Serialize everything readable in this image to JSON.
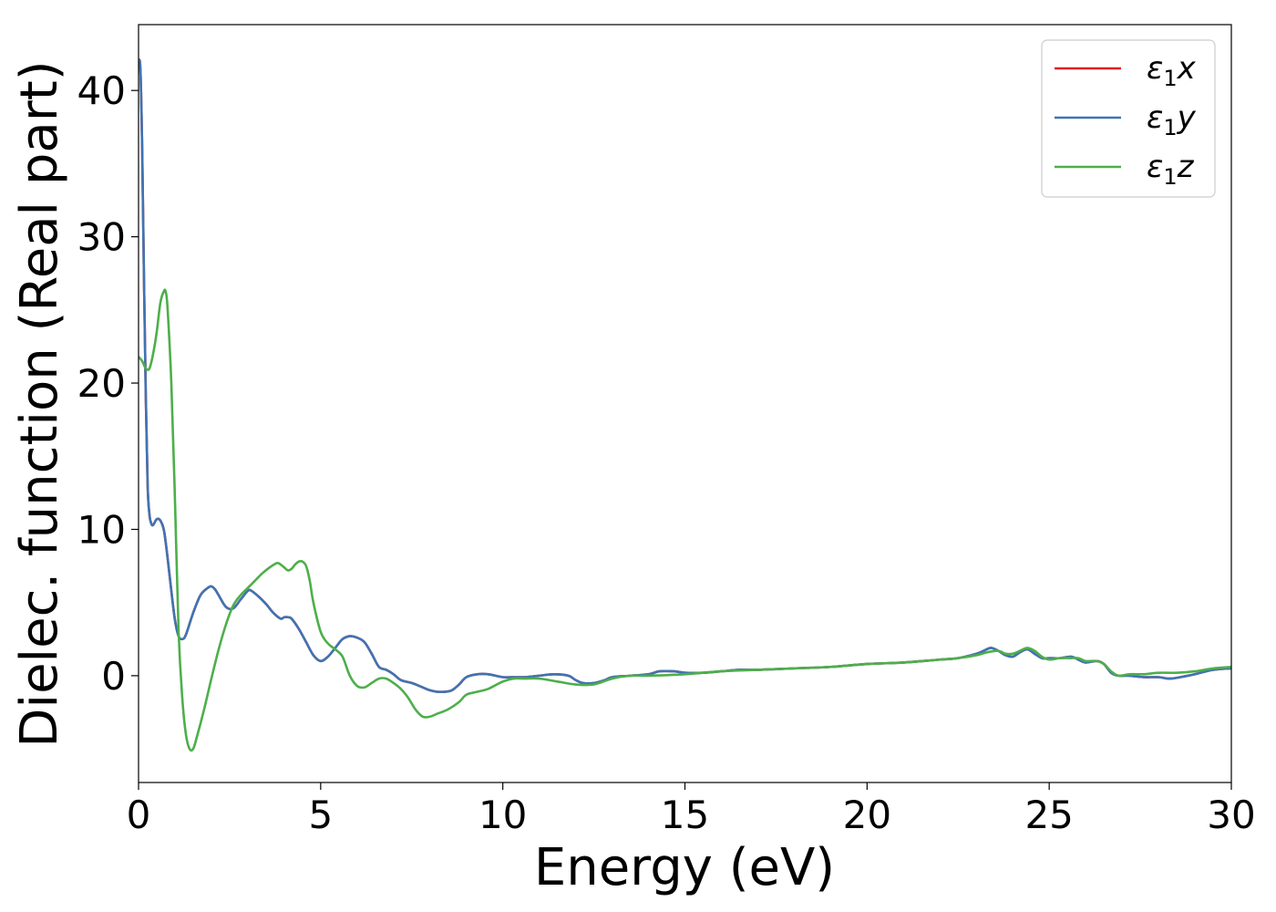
{
  "chart_data": {
    "type": "line",
    "title": "",
    "xlabel": "Energy (eV)",
    "ylabel": "Dielec. function (Real part)",
    "xlim": [
      0,
      30
    ],
    "ylim": [
      -7.3,
      44.5
    ],
    "xticks": [
      "0",
      "5",
      "10",
      "15",
      "20",
      "25",
      "30"
    ],
    "yticks": [
      "0",
      "10",
      "20",
      "30",
      "40"
    ],
    "legend_position": "top-right",
    "grid": false,
    "series": [
      {
        "name": "ε1x",
        "legend": {
          "base": "ε",
          "sub": "1",
          "var": "x"
        },
        "color": "#e41a1c",
        "x": [
          0,
          0.05,
          0.1,
          0.15,
          0.2,
          0.25,
          0.3,
          0.35,
          0.4,
          0.5,
          0.6,
          0.7,
          0.8,
          0.9,
          1.0,
          1.1,
          1.2,
          1.3,
          1.5,
          1.7,
          1.9,
          2.0,
          2.1,
          2.2,
          2.4,
          2.6,
          2.8,
          3.0,
          3.1,
          3.3,
          3.5,
          3.7,
          3.9,
          4.0,
          4.1,
          4.2,
          4.4,
          4.6,
          4.8,
          5.0,
          5.2,
          5.4,
          5.6,
          5.8,
          6.0,
          6.2,
          6.4,
          6.6,
          6.8,
          7.0,
          7.2,
          7.5,
          7.8,
          8.0,
          8.2,
          8.4,
          8.6,
          8.8,
          9.0,
          9.3,
          9.6,
          10.0,
          10.3,
          10.6,
          11.0,
          11.4,
          11.8,
          12.0,
          12.2,
          12.5,
          12.8,
          13.0,
          13.5,
          14.0,
          14.3,
          14.7,
          15.0,
          15.5,
          16.0,
          16.5,
          17.0,
          18.0,
          19.0,
          20.0,
          21.0,
          22.0,
          22.5,
          23.0,
          23.2,
          23.4,
          23.6,
          23.8,
          24.0,
          24.2,
          24.4,
          24.6,
          24.8,
          25.0,
          25.3,
          25.6,
          25.8,
          26.0,
          26.3,
          26.5,
          26.7,
          26.9,
          27.2,
          27.6,
          28.0,
          28.3,
          28.6,
          29.0,
          29.5,
          30.0
        ],
        "y": [
          42.0,
          41.5,
          36.0,
          27.0,
          19.0,
          13.0,
          11.0,
          10.4,
          10.3,
          10.7,
          10.6,
          9.9,
          8.0,
          5.8,
          3.8,
          2.7,
          2.5,
          2.8,
          4.3,
          5.5,
          6.0,
          6.1,
          5.9,
          5.5,
          4.7,
          4.6,
          5.2,
          5.8,
          5.8,
          5.4,
          4.9,
          4.3,
          3.9,
          4.0,
          4.0,
          3.9,
          3.2,
          2.3,
          1.4,
          1.0,
          1.3,
          1.9,
          2.5,
          2.7,
          2.6,
          2.3,
          1.5,
          0.6,
          0.4,
          0.1,
          -0.3,
          -0.5,
          -0.8,
          -1.0,
          -1.1,
          -1.1,
          -1.0,
          -0.6,
          -0.1,
          0.1,
          0.1,
          -0.1,
          -0.1,
          -0.1,
          0.0,
          0.1,
          0.0,
          -0.3,
          -0.5,
          -0.5,
          -0.3,
          -0.1,
          0.0,
          0.1,
          0.3,
          0.3,
          0.2,
          0.2,
          0.3,
          0.4,
          0.4,
          0.5,
          0.6,
          0.8,
          0.9,
          1.1,
          1.2,
          1.5,
          1.7,
          1.9,
          1.7,
          1.4,
          1.3,
          1.6,
          1.8,
          1.5,
          1.2,
          1.2,
          1.2,
          1.3,
          1.1,
          0.9,
          1.0,
          0.8,
          0.2,
          0.0,
          0.0,
          -0.1,
          -0.1,
          -0.2,
          -0.1,
          0.1,
          0.4,
          0.5
        ]
      },
      {
        "name": "ε1y",
        "legend": {
          "base": "ε",
          "sub": "1",
          "var": "y"
        },
        "color": "#3e74b3",
        "x": [
          0,
          0.05,
          0.1,
          0.15,
          0.2,
          0.25,
          0.3,
          0.35,
          0.4,
          0.5,
          0.6,
          0.7,
          0.8,
          0.9,
          1.0,
          1.1,
          1.2,
          1.3,
          1.5,
          1.7,
          1.9,
          2.0,
          2.1,
          2.2,
          2.4,
          2.6,
          2.8,
          3.0,
          3.1,
          3.3,
          3.5,
          3.7,
          3.9,
          4.0,
          4.1,
          4.2,
          4.4,
          4.6,
          4.8,
          5.0,
          5.2,
          5.4,
          5.6,
          5.8,
          6.0,
          6.2,
          6.4,
          6.6,
          6.8,
          7.0,
          7.2,
          7.5,
          7.8,
          8.0,
          8.2,
          8.4,
          8.6,
          8.8,
          9.0,
          9.3,
          9.6,
          10.0,
          10.3,
          10.6,
          11.0,
          11.4,
          11.8,
          12.0,
          12.2,
          12.5,
          12.8,
          13.0,
          13.5,
          14.0,
          14.3,
          14.7,
          15.0,
          15.5,
          16.0,
          16.5,
          17.0,
          18.0,
          19.0,
          20.0,
          21.0,
          22.0,
          22.5,
          23.0,
          23.2,
          23.4,
          23.6,
          23.8,
          24.0,
          24.2,
          24.4,
          24.6,
          24.8,
          25.0,
          25.3,
          25.6,
          25.8,
          26.0,
          26.3,
          26.5,
          26.7,
          26.9,
          27.2,
          27.6,
          28.0,
          28.3,
          28.6,
          29.0,
          29.5,
          30.0
        ],
        "y": [
          42.0,
          41.5,
          36.0,
          27.0,
          19.0,
          13.0,
          11.0,
          10.4,
          10.3,
          10.7,
          10.6,
          9.9,
          8.0,
          5.8,
          3.8,
          2.7,
          2.5,
          2.8,
          4.3,
          5.5,
          6.0,
          6.1,
          5.9,
          5.5,
          4.7,
          4.6,
          5.2,
          5.8,
          5.8,
          5.4,
          4.9,
          4.3,
          3.9,
          4.0,
          4.0,
          3.9,
          3.2,
          2.3,
          1.4,
          1.0,
          1.3,
          1.9,
          2.5,
          2.7,
          2.6,
          2.3,
          1.5,
          0.6,
          0.4,
          0.1,
          -0.3,
          -0.5,
          -0.8,
          -1.0,
          -1.1,
          -1.1,
          -1.0,
          -0.6,
          -0.1,
          0.1,
          0.1,
          -0.1,
          -0.1,
          -0.1,
          0.0,
          0.1,
          0.0,
          -0.3,
          -0.5,
          -0.5,
          -0.3,
          -0.1,
          0.0,
          0.1,
          0.3,
          0.3,
          0.2,
          0.2,
          0.3,
          0.4,
          0.4,
          0.5,
          0.6,
          0.8,
          0.9,
          1.1,
          1.2,
          1.5,
          1.7,
          1.9,
          1.7,
          1.4,
          1.3,
          1.6,
          1.8,
          1.5,
          1.2,
          1.2,
          1.2,
          1.3,
          1.1,
          0.9,
          1.0,
          0.8,
          0.2,
          0.0,
          0.0,
          -0.1,
          -0.1,
          -0.2,
          -0.1,
          0.1,
          0.4,
          0.5
        ]
      },
      {
        "name": "ε1z",
        "legend": {
          "base": "ε",
          "sub": "1",
          "var": "z"
        },
        "color": "#4daf4a",
        "x": [
          0,
          0.1,
          0.2,
          0.3,
          0.4,
          0.5,
          0.6,
          0.7,
          0.75,
          0.8,
          0.9,
          1.0,
          1.1,
          1.2,
          1.3,
          1.4,
          1.5,
          1.6,
          1.8,
          2.0,
          2.2,
          2.4,
          2.6,
          2.8,
          3.0,
          3.2,
          3.4,
          3.6,
          3.8,
          3.9,
          4.0,
          4.1,
          4.2,
          4.3,
          4.4,
          4.5,
          4.6,
          4.7,
          4.8,
          5.0,
          5.2,
          5.4,
          5.6,
          5.8,
          6.0,
          6.2,
          6.4,
          6.6,
          6.8,
          7.0,
          7.2,
          7.4,
          7.6,
          7.8,
          8.0,
          8.2,
          8.5,
          8.8,
          9.0,
          9.3,
          9.6,
          10.0,
          10.3,
          10.6,
          11.0,
          11.5,
          12.0,
          12.5,
          13.0,
          13.5,
          14.0,
          15.0,
          16.0,
          17.0,
          18.0,
          19.0,
          20.0,
          21.0,
          22.0,
          22.5,
          23.0,
          23.3,
          23.6,
          23.8,
          24.0,
          24.2,
          24.4,
          24.6,
          24.8,
          25.0,
          25.3,
          25.6,
          25.8,
          26.0,
          26.3,
          26.5,
          26.7,
          26.9,
          27.2,
          27.6,
          28.0,
          28.5,
          29.0,
          29.5,
          30.0
        ],
        "y": [
          21.8,
          21.5,
          21.0,
          21.0,
          22.0,
          23.5,
          25.5,
          26.3,
          26.2,
          25.0,
          20.0,
          12.0,
          3.0,
          -1.5,
          -4.0,
          -5.0,
          -5.0,
          -4.2,
          -2.3,
          -0.2,
          1.8,
          3.5,
          4.8,
          5.5,
          6.0,
          6.5,
          7.0,
          7.4,
          7.7,
          7.6,
          7.4,
          7.2,
          7.3,
          7.6,
          7.8,
          7.8,
          7.5,
          6.5,
          5.0,
          3.0,
          2.2,
          1.8,
          1.3,
          0.0,
          -0.7,
          -0.8,
          -0.5,
          -0.2,
          -0.2,
          -0.5,
          -0.9,
          -1.5,
          -2.3,
          -2.8,
          -2.8,
          -2.6,
          -2.3,
          -1.8,
          -1.3,
          -1.1,
          -0.9,
          -0.4,
          -0.2,
          -0.2,
          -0.2,
          -0.4,
          -0.6,
          -0.6,
          -0.2,
          0.0,
          0.0,
          0.1,
          0.3,
          0.4,
          0.5,
          0.6,
          0.8,
          0.9,
          1.1,
          1.2,
          1.4,
          1.6,
          1.7,
          1.5,
          1.5,
          1.7,
          1.9,
          1.7,
          1.3,
          1.1,
          1.2,
          1.2,
          1.2,
          1.0,
          1.0,
          0.8,
          0.3,
          0.0,
          0.1,
          0.1,
          0.2,
          0.2,
          0.3,
          0.5,
          0.6
        ]
      }
    ]
  }
}
